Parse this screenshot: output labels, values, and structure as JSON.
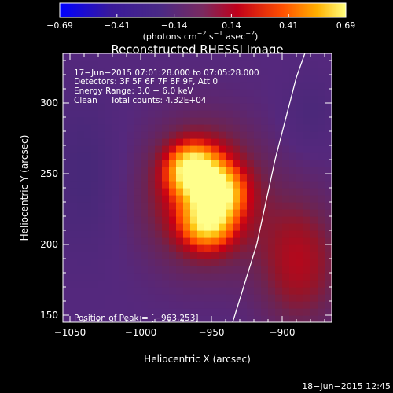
{
  "colorbar": {
    "ticks": [
      "−0.69",
      "−0.41",
      "−0.14",
      "0.14",
      "0.41",
      "0.69"
    ],
    "unit_main": "(photons cm",
    "unit_exp1": "−2",
    "unit_mid": " s",
    "unit_exp2": "−1",
    "unit_end": " asec",
    "unit_exp3": "−2",
    "unit_close": ")"
  },
  "info": {
    "line1": "17−Jun−2015 07:01:28.000 to 07:05:28.000",
    "line2": "Detectors: 3F 5F 6F 7F 8F 9F, Att 0",
    "line3": "Energy Range: 3.0 − 6.0 keV",
    "line4": "Clean     Total counts: 4.32E+04",
    "peak": "Position of Peak = [−963,253]"
  },
  "footer": {
    "timestamp": "18−Jun−2015 12:45"
  },
  "chart_data": {
    "type": "heatmap",
    "title": "Reconstructed RHESSI Image",
    "xlabel": "Heliocentric X (arcsec)",
    "ylabel": "Heliocentric Y (arcsec)",
    "xlim": [
      -1055,
      -865
    ],
    "ylim": [
      145,
      335
    ],
    "x_ticks": [
      {
        "value": -1050,
        "label": "−1050"
      },
      {
        "value": -1000,
        "label": "−1000"
      },
      {
        "value": -950,
        "label": "−950"
      },
      {
        "value": -900,
        "label": "−900"
      }
    ],
    "y_ticks": [
      {
        "value": 150,
        "label": "150"
      },
      {
        "value": 200,
        "label": "200"
      },
      {
        "value": 250,
        "label": "250"
      },
      {
        "value": 300,
        "label": "300"
      }
    ],
    "colorbar_range": [
      -0.69,
      0.69
    ],
    "sources": [
      {
        "x": -963,
        "y": 253,
        "amplitude": 0.69
      },
      {
        "x": -945,
        "y": 237,
        "amplitude": 0.55
      },
      {
        "x": -953,
        "y": 215,
        "amplitude": 0.5
      }
    ],
    "peak": [
      -963,
      253
    ],
    "limb_curve": [
      [
        -935,
        145
      ],
      [
        -918,
        200
      ],
      [
        -905,
        260
      ],
      [
        -890,
        318
      ],
      [
        -884,
        335
      ]
    ]
  }
}
